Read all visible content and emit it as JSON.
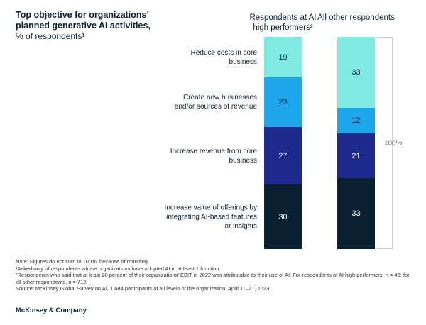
{
  "chart_data": {
    "type": "stacked_bar",
    "title": "Top objective for organizations’ planned generative AI activities,",
    "subtitle": "% of respondents¹",
    "categories": [
      "Respondents at AI high performers²",
      "All other respondents"
    ],
    "series": [
      {
        "name": "Increase value of offerings by integrating AI-based features or insights",
        "color": "#0b1f33",
        "text_color": "#ffffff",
        "values": [
          30,
          33
        ]
      },
      {
        "name": "Increase revenue from core business",
        "color": "#1f2a8f",
        "text_color": "#ffffff",
        "values": [
          27,
          21
        ]
      },
      {
        "name": "Create new businesses and/or sources of revenue",
        "color": "#1ea6ea",
        "text_color": "#0b1f33",
        "values": [
          23,
          12
        ]
      },
      {
        "name": "Reduce costs in core business",
        "color": "#80e9e1",
        "text_color": "#0b1f33",
        "values": [
          19,
          33
        ]
      }
    ],
    "bracket_label": "100%",
    "notes": [
      "Note: Figures do not sum to 100%, because of rounding.",
      "¹Asked only of respondents whose organizations have adopted AI in at least 1 function.",
      "²Respondents who said that at least 20 percent of their organizations’ EBIT in 2022 was attributable to their use of AI. For respondents at AI high performers, n = 45; for all other respondents, n = 712.",
      "Source: McKinsey Global Survey on AI, 1,684 participants at all levels of the organization, April 11–21, 2023"
    ],
    "footer": "McKinsey & Company"
  }
}
